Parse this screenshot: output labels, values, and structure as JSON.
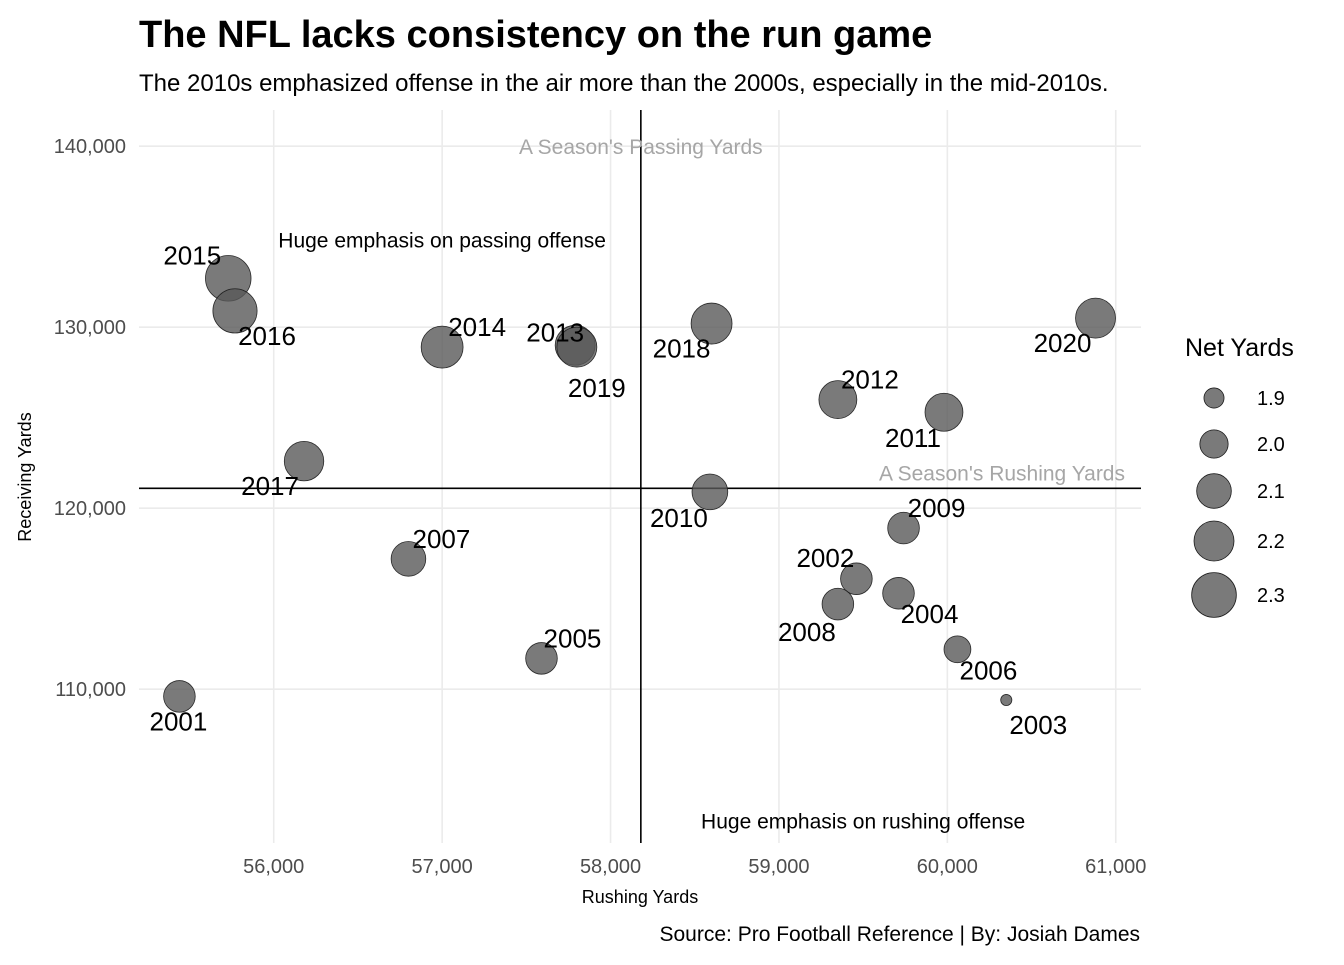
{
  "chart_data": {
    "type": "scatter",
    "title": "The NFL lacks consistency on the run game",
    "subtitle": "The 2010s emphasized offense in the air more than the 2000s, especially in the mid-2010s.",
    "caption": "Source: Pro Football Reference | By: Josiah Dames",
    "xlabel": "Rushing Yards",
    "ylabel": "Receiving Yards",
    "xlim": [
      55200,
      61150
    ],
    "ylim": [
      101500,
      142000
    ],
    "x_ticks": [
      56000,
      57000,
      58000,
      59000,
      60000,
      61000
    ],
    "x_tick_labels": [
      "56,000",
      "57,000",
      "58,000",
      "59,000",
      "60,000",
      "61,000"
    ],
    "y_ticks": [
      110000,
      120000,
      130000,
      140000
    ],
    "y_tick_labels": [
      "110,000",
      "120,000",
      "130,000",
      "140,000"
    ],
    "grid": true,
    "point_color": "#595959",
    "point_opacity": 0.8,
    "reference_lines": {
      "vertical": {
        "x": 58180,
        "label": "A Season's Passing Yards"
      },
      "horizontal": {
        "y": 121100,
        "label": "A Season's Rushing Yards"
      }
    },
    "annotations": [
      {
        "text": "Huge emphasis on passing offense",
        "x": 57000,
        "y": 134800
      },
      {
        "text": "Huge emphasis on rushing offense",
        "x": 59500,
        "y": 102700
      }
    ],
    "legend": {
      "title": "Net Yards",
      "placement": "right",
      "entries": [
        {
          "label": "1.9",
          "value": 1.9
        },
        {
          "label": "2.0",
          "value": 2.0
        },
        {
          "label": "2.1",
          "value": 2.1
        },
        {
          "label": "2.2",
          "value": 2.2
        },
        {
          "label": "2.3",
          "value": 2.3
        }
      ]
    },
    "size_scale": {
      "min": 1.82,
      "max": 2.33
    },
    "points": [
      {
        "label": "2001",
        "x": 55440,
        "y": 109600,
        "net": 2.05
      },
      {
        "label": "2002",
        "x": 59460,
        "y": 116100,
        "net": 2.05
      },
      {
        "label": "2003",
        "x": 60350,
        "y": 109400,
        "net": 1.83
      },
      {
        "label": "2004",
        "x": 59710,
        "y": 115300,
        "net": 2.05
      },
      {
        "label": "2005",
        "x": 57590,
        "y": 111700,
        "net": 2.05
      },
      {
        "label": "2006",
        "x": 60060,
        "y": 112200,
        "net": 1.98
      },
      {
        "label": "2007",
        "x": 56800,
        "y": 117200,
        "net": 2.1
      },
      {
        "label": "2008",
        "x": 59350,
        "y": 114700,
        "net": 2.05
      },
      {
        "label": "2009",
        "x": 59740,
        "y": 118900,
        "net": 2.05
      },
      {
        "label": "2010",
        "x": 58590,
        "y": 120900,
        "net": 2.12
      },
      {
        "label": "2011",
        "x": 59980,
        "y": 125300,
        "net": 2.16
      },
      {
        "label": "2012",
        "x": 59350,
        "y": 126000,
        "net": 2.16
      },
      {
        "label": "2013",
        "x": 57790,
        "y": 129000,
        "net": 2.2
      },
      {
        "label": "2014",
        "x": 57000,
        "y": 128900,
        "net": 2.24
      },
      {
        "label": "2015",
        "x": 55730,
        "y": 132700,
        "net": 2.32
      },
      {
        "label": "2016",
        "x": 55770,
        "y": 130900,
        "net": 2.29
      },
      {
        "label": "2017",
        "x": 56180,
        "y": 122600,
        "net": 2.19
      },
      {
        "label": "2018",
        "x": 58600,
        "y": 130200,
        "net": 2.22
      },
      {
        "label": "2019",
        "x": 57800,
        "y": 128900,
        "net": 2.2
      },
      {
        "label": "2020",
        "x": 60880,
        "y": 130500,
        "net": 2.2
      }
    ]
  }
}
